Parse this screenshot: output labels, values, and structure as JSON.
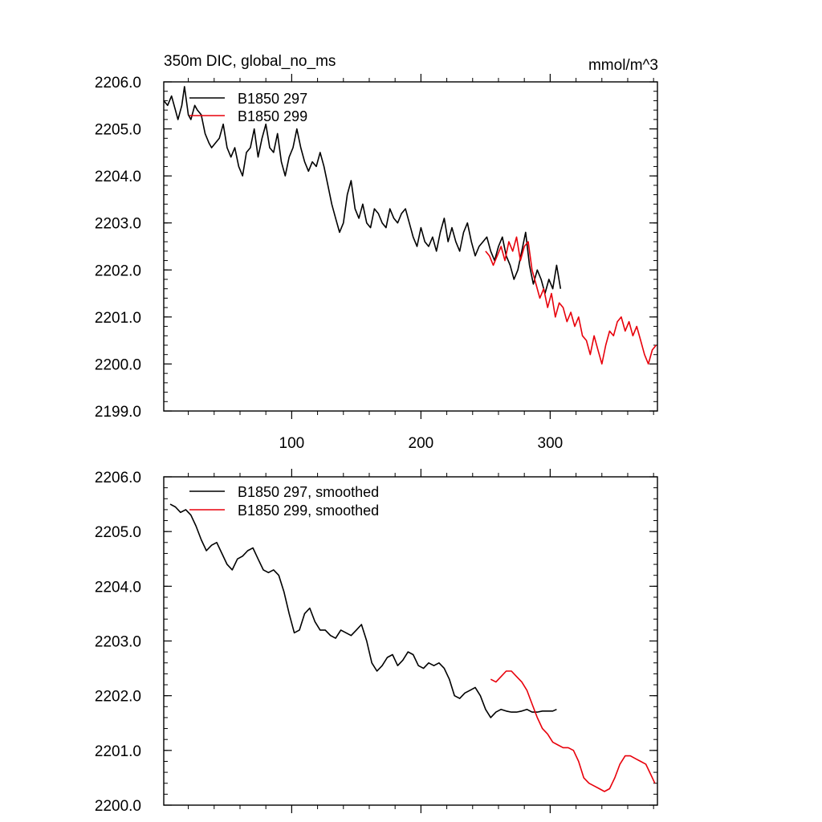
{
  "figure": {
    "title_left": "350m DIC, global_no_ms",
    "title_right": "mmol/m^3"
  },
  "chart_data": [
    {
      "type": "line",
      "title": "350m DIC, global_no_ms",
      "units": "mmol/m^3",
      "xlim": [
        1,
        383
      ],
      "ylim": [
        2199.0,
        2206.0
      ],
      "x_ticks": [
        100,
        200,
        300
      ],
      "x_tick_labels": [
        "100",
        "200",
        "300"
      ],
      "y_ticks": [
        2199,
        2200,
        2201,
        2202,
        2203,
        2204,
        2205,
        2206
      ],
      "y_tick_labels": [
        "2199.0",
        "2200.0",
        "2201.0",
        "2202.0",
        "2203.0",
        "2204.0",
        "2205.0",
        "2206.0"
      ],
      "legend_position": "top-left",
      "series": [
        {
          "name": "B1850 297",
          "color": "#000000",
          "x": [
            1,
            4,
            7,
            10,
            12,
            15,
            17,
            20,
            22,
            25,
            27,
            30,
            33,
            36,
            38,
            41,
            44,
            47,
            50,
            53,
            56,
            59,
            62,
            65,
            68,
            71,
            74,
            77,
            80,
            83,
            86,
            89,
            92,
            95,
            98,
            101,
            104,
            107,
            110,
            113,
            116,
            119,
            122,
            125,
            128,
            131,
            134,
            137,
            140,
            143,
            146,
            149,
            152,
            155,
            158,
            161,
            164,
            167,
            170,
            173,
            176,
            179,
            182,
            185,
            188,
            191,
            194,
            197,
            200,
            203,
            206,
            209,
            212,
            215,
            218,
            221,
            224,
            227,
            230,
            233,
            236,
            239,
            242,
            245,
            248,
            251,
            254,
            257,
            260,
            263,
            266,
            269,
            272,
            275,
            278,
            281,
            284,
            287,
            290,
            293,
            296,
            299,
            302,
            305,
            308
          ],
          "values": [
            2205.6,
            2205.5,
            2205.7,
            2205.4,
            2205.2,
            2205.5,
            2205.9,
            2205.3,
            2205.2,
            2205.5,
            2205.4,
            2205.3,
            2204.9,
            2204.7,
            2204.6,
            2204.7,
            2204.8,
            2205.1,
            2204.6,
            2204.4,
            2204.6,
            2204.2,
            2204.0,
            2204.5,
            2204.6,
            2205.0,
            2204.4,
            2204.8,
            2205.1,
            2204.6,
            2204.5,
            2204.9,
            2204.3,
            2204.0,
            2204.4,
            2204.6,
            2205.0,
            2204.6,
            2204.3,
            2204.1,
            2204.3,
            2204.2,
            2204.5,
            2204.2,
            2203.8,
            2203.4,
            2203.1,
            2202.8,
            2203.0,
            2203.6,
            2203.9,
            2203.3,
            2203.1,
            2203.4,
            2203.0,
            2202.9,
            2203.3,
            2203.2,
            2203.0,
            2202.9,
            2203.3,
            2203.1,
            2203.0,
            2203.2,
            2203.3,
            2203.0,
            2202.7,
            2202.5,
            2202.9,
            2202.6,
            2202.5,
            2202.7,
            2202.4,
            2202.8,
            2203.1,
            2202.6,
            2202.9,
            2202.6,
            2202.4,
            2202.8,
            2203.0,
            2202.6,
            2202.3,
            2202.5,
            2202.6,
            2202.7,
            2202.4,
            2202.2,
            2202.5,
            2202.7,
            2202.3,
            2202.1,
            2201.8,
            2202.0,
            2202.4,
            2202.8,
            2202.1,
            2201.7,
            2202.0,
            2201.8,
            2201.5,
            2201.8,
            2201.6,
            2202.1,
            2201.6
          ]
        },
        {
          "name": "B1850 299",
          "color": "#e8000b",
          "x": [
            250,
            253,
            256,
            259,
            262,
            265,
            268,
            271,
            274,
            277,
            280,
            283,
            286,
            289,
            292,
            295,
            298,
            301,
            304,
            307,
            310,
            313,
            316,
            319,
            322,
            325,
            328,
            331,
            334,
            337,
            340,
            343,
            346,
            349,
            352,
            355,
            358,
            361,
            364,
            367,
            370,
            373,
            376,
            379,
            382
          ],
          "values": [
            2202.4,
            2202.3,
            2202.1,
            2202.3,
            2202.5,
            2202.2,
            2202.6,
            2202.4,
            2202.7,
            2202.2,
            2202.5,
            2202.6,
            2202.0,
            2201.7,
            2201.4,
            2201.6,
            2201.2,
            2201.5,
            2201.0,
            2201.3,
            2201.2,
            2200.9,
            2201.1,
            2200.8,
            2201.0,
            2200.6,
            2200.5,
            2200.2,
            2200.6,
            2200.3,
            2200.0,
            2200.4,
            2200.7,
            2200.6,
            2200.9,
            2201.0,
            2200.7,
            2200.9,
            2200.6,
            2200.8,
            2200.5,
            2200.2,
            2200.0,
            2200.3,
            2200.4
          ]
        }
      ]
    },
    {
      "type": "line",
      "xlim": [
        1,
        383
      ],
      "ylim": [
        2200.0,
        2206.0
      ],
      "x_ticks": [
        100,
        200,
        300
      ],
      "y_ticks": [
        2200,
        2201,
        2202,
        2203,
        2204,
        2205,
        2206
      ],
      "y_tick_labels": [
        "2200.0",
        "2201.0",
        "2202.0",
        "2203.0",
        "2204.0",
        "2205.0",
        "2206.0"
      ],
      "legend_position": "top-left",
      "series": [
        {
          "name": "B1850 297, smoothed",
          "color": "#000000",
          "x": [
            6,
            10,
            14,
            18,
            22,
            26,
            30,
            34,
            38,
            42,
            46,
            50,
            54,
            58,
            62,
            66,
            70,
            74,
            78,
            82,
            86,
            90,
            94,
            98,
            102,
            106,
            110,
            114,
            118,
            122,
            126,
            130,
            134,
            138,
            142,
            146,
            150,
            154,
            158,
            162,
            166,
            170,
            174,
            178,
            182,
            186,
            190,
            194,
            198,
            202,
            206,
            210,
            214,
            218,
            222,
            226,
            230,
            234,
            238,
            242,
            246,
            250,
            254,
            258,
            262,
            266,
            270,
            274,
            278,
            282,
            286,
            290,
            294,
            298,
            302,
            305
          ],
          "values": [
            2205.5,
            2205.45,
            2205.35,
            2205.4,
            2205.3,
            2205.1,
            2204.85,
            2204.65,
            2204.75,
            2204.8,
            2204.6,
            2204.4,
            2204.3,
            2204.5,
            2204.55,
            2204.65,
            2204.7,
            2204.5,
            2204.3,
            2204.25,
            2204.3,
            2204.2,
            2203.9,
            2203.5,
            2203.15,
            2203.2,
            2203.5,
            2203.6,
            2203.35,
            2203.2,
            2203.2,
            2203.1,
            2203.05,
            2203.2,
            2203.15,
            2203.1,
            2203.2,
            2203.3,
            2203.0,
            2202.6,
            2202.45,
            2202.55,
            2202.7,
            2202.75,
            2202.55,
            2202.65,
            2202.8,
            2202.75,
            2202.55,
            2202.5,
            2202.6,
            2202.55,
            2202.6,
            2202.5,
            2202.3,
            2202.0,
            2201.95,
            2202.05,
            2202.1,
            2202.15,
            2202.0,
            2201.75,
            2201.6,
            2201.7,
            2201.75,
            2201.72,
            2201.7,
            2201.7,
            2201.72,
            2201.75,
            2201.7,
            2201.7,
            2201.72,
            2201.72,
            2201.72,
            2201.75
          ]
        },
        {
          "name": "B1850 299, smoothed",
          "color": "#e8000b",
          "x": [
            254,
            258,
            262,
            266,
            270,
            274,
            278,
            282,
            286,
            290,
            294,
            298,
            302,
            306,
            310,
            314,
            318,
            322,
            326,
            330,
            334,
            338,
            342,
            346,
            350,
            354,
            358,
            362,
            366,
            370,
            374,
            378,
            381
          ],
          "values": [
            2202.3,
            2202.25,
            2202.35,
            2202.45,
            2202.45,
            2202.35,
            2202.25,
            2202.1,
            2201.85,
            2201.6,
            2201.4,
            2201.3,
            2201.15,
            2201.1,
            2201.05,
            2201.05,
            2201.0,
            2200.8,
            2200.5,
            2200.4,
            2200.35,
            2200.3,
            2200.25,
            2200.3,
            2200.5,
            2200.75,
            2200.9,
            2200.9,
            2200.85,
            2200.8,
            2200.75,
            2200.55,
            2200.4
          ]
        }
      ]
    }
  ]
}
